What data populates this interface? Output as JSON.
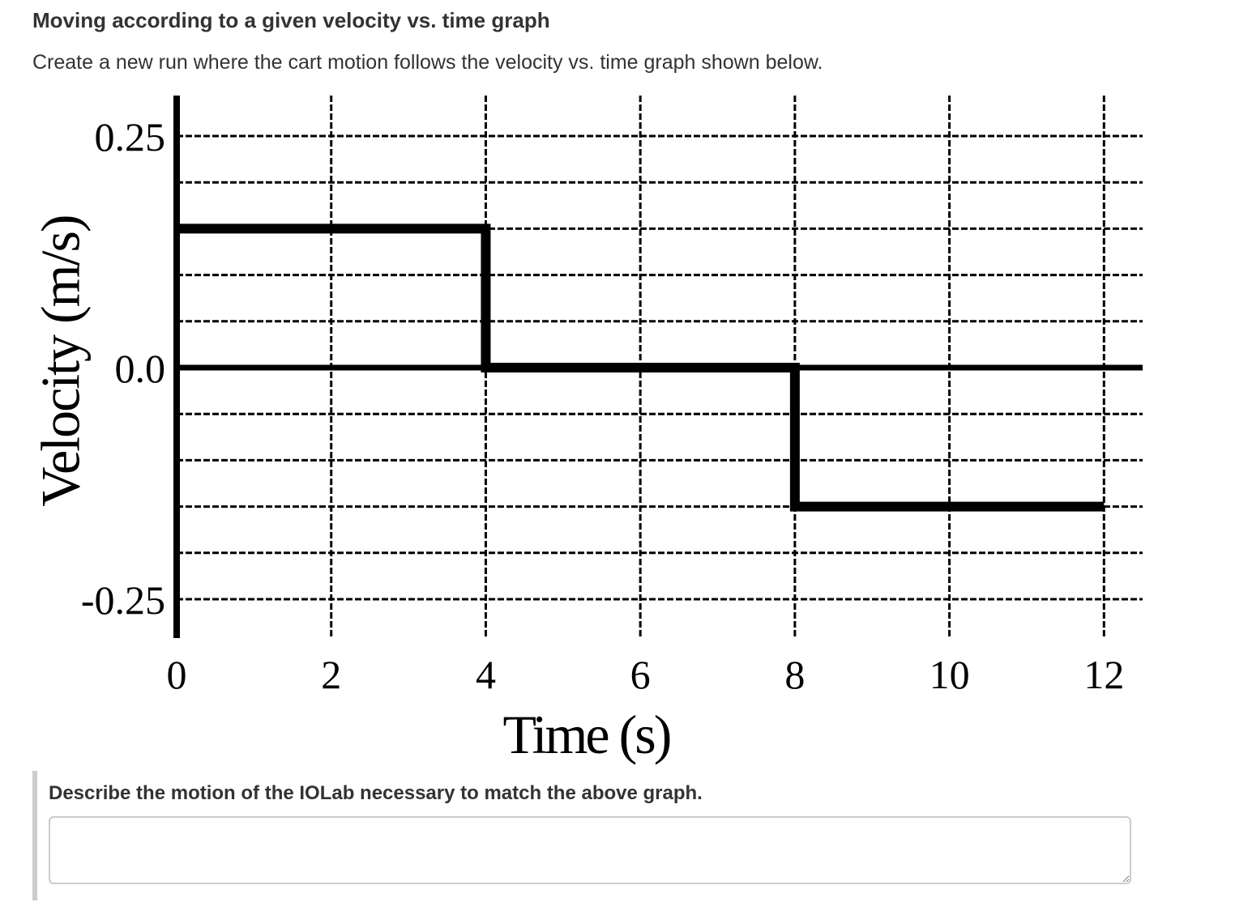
{
  "question": {
    "heading": "Moving according to a given velocity vs. time graph",
    "instruction": "Create a new run where the cart motion follows the velocity vs. time graph shown below."
  },
  "chart_data": {
    "type": "line",
    "xlabel": "Time (s)",
    "ylabel": "Velocity (m/s)",
    "xlim": [
      0,
      12.5
    ],
    "ylim": [
      -0.25,
      0.25
    ],
    "x_ticks": [
      0,
      2,
      4,
      6,
      8,
      10,
      12
    ],
    "x_tick_labels": [
      "0",
      "2",
      "4",
      "6",
      "8",
      "10",
      "12"
    ],
    "y_ticks": [
      0.25,
      0.0,
      -0.25
    ],
    "y_tick_labels": [
      "0.25",
      "0.0",
      "-0.25"
    ],
    "y_grid_step": 0.05,
    "grid": true,
    "grid_style": "dashed",
    "zero_line": true,
    "series": [
      {
        "x": [
          0,
          4,
          4,
          8,
          8,
          12
        ],
        "y": [
          0.15,
          0.15,
          0.0,
          0.0,
          -0.15,
          -0.15
        ]
      }
    ]
  },
  "prompt": {
    "label": "Describe the motion of the IOLab necessary to match the above graph.",
    "answer_value": ""
  }
}
